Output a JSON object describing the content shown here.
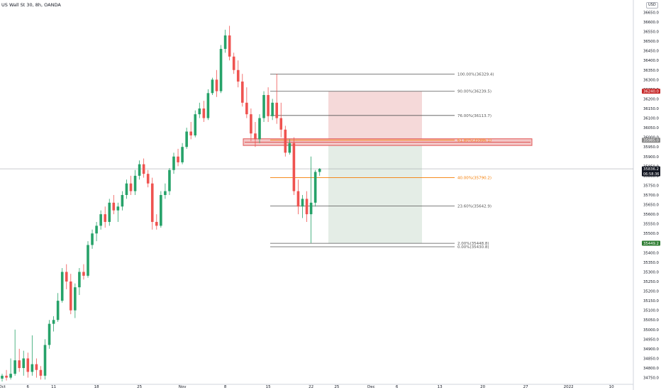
{
  "header": {
    "title": "US Wall St 30, 8h, OANDA",
    "currency": "USD"
  },
  "colors": {
    "up": "#26a269",
    "down": "#ef5350",
    "fib_line": "#555555",
    "fib_orange": "#f57c00",
    "stop_zone": "#f5d9d9",
    "target_zone": "#e4ede6",
    "resistance_box": "#f3c6c6",
    "resistance_border": "#e05555",
    "price_badge_red": "#c62828",
    "price_badge_dark": "#131722",
    "price_badge_green": "#2e7d32",
    "grey_badge": "#888888"
  },
  "price_axis": {
    "ticks": [
      "36650.0",
      "36600.0",
      "36550.0",
      "36500.0",
      "36450.0",
      "36400.0",
      "36350.0",
      "36300.0",
      "36250.0",
      "36200.0",
      "36150.0",
      "36100.0",
      "36050.0",
      "36000.0",
      "35950.0",
      "35900.0",
      "35850.0",
      "35800.0",
      "35750.0",
      "35700.0",
      "35650.0",
      "35600.0",
      "35550.0",
      "35500.0",
      "35450.0",
      "35400.0",
      "35350.0",
      "35300.0",
      "35250.0",
      "35200.0",
      "35150.0",
      "35100.0",
      "35050.0",
      "35000.0",
      "34950.0",
      "34900.0",
      "34850.0",
      "34800.0",
      "34750.0"
    ],
    "badges": [
      {
        "label": "36240.0",
        "price": 36240.0,
        "kind": "red"
      },
      {
        "label": "35985.0",
        "price": 35985.0,
        "kind": "grey"
      },
      {
        "label": "35836.2",
        "price": 35836.2,
        "kind": "dark",
        "sub": "06:58:36"
      },
      {
        "label": "35449.2",
        "price": 35449.2,
        "kind": "green"
      }
    ]
  },
  "time_axis": {
    "ticks": [
      {
        "label": "Oct",
        "bar": 0
      },
      {
        "label": "6",
        "bar": 6
      },
      {
        "label": "11",
        "bar": 12
      },
      {
        "label": "18",
        "bar": 22
      },
      {
        "label": "25",
        "bar": 32
      },
      {
        "label": "Nov",
        "bar": 42
      },
      {
        "label": "8",
        "bar": 52
      },
      {
        "label": "15",
        "bar": 62
      },
      {
        "label": "22",
        "bar": 72
      },
      {
        "label": "25",
        "bar": 78
      },
      {
        "label": "Dec",
        "bar": 86
      },
      {
        "label": "6",
        "bar": 92
      },
      {
        "label": "13",
        "bar": 102
      },
      {
        "label": "20",
        "bar": 112
      },
      {
        "label": "27",
        "bar": 122
      },
      {
        "label": "2022",
        "bar": 132
      },
      {
        "label": "10",
        "bar": 142
      }
    ]
  },
  "chart_data": {
    "type": "candlestick",
    "title": "US Wall St 30, 8h, OANDA",
    "ylim": [
      34730,
      36670
    ],
    "candles": [
      {
        "o": 34745,
        "h": 34770,
        "l": 34730,
        "c": 34760
      },
      {
        "o": 34760,
        "h": 34790,
        "l": 34735,
        "c": 34750
      },
      {
        "o": 34750,
        "h": 34850,
        "l": 34740,
        "c": 34770
      },
      {
        "o": 34770,
        "h": 35000,
        "l": 34760,
        "c": 34840
      },
      {
        "o": 34840,
        "h": 34900,
        "l": 34780,
        "c": 34800
      },
      {
        "o": 34800,
        "h": 34890,
        "l": 34760,
        "c": 34850
      },
      {
        "o": 34850,
        "h": 34880,
        "l": 34750,
        "c": 34780
      },
      {
        "o": 34780,
        "h": 34970,
        "l": 34760,
        "c": 34820
      },
      {
        "o": 34820,
        "h": 34850,
        "l": 34750,
        "c": 34790
      },
      {
        "o": 34790,
        "h": 34810,
        "l": 34740,
        "c": 34760
      },
      {
        "o": 34760,
        "h": 34950,
        "l": 34740,
        "c": 34920
      },
      {
        "o": 34920,
        "h": 35050,
        "l": 34900,
        "c": 35030
      },
      {
        "o": 35030,
        "h": 35070,
        "l": 34990,
        "c": 35050
      },
      {
        "o": 35050,
        "h": 35190,
        "l": 35040,
        "c": 35150
      },
      {
        "o": 35150,
        "h": 35320,
        "l": 35140,
        "c": 35300
      },
      {
        "o": 35300,
        "h": 35340,
        "l": 35210,
        "c": 35250
      },
      {
        "o": 35250,
        "h": 35290,
        "l": 35080,
        "c": 35100
      },
      {
        "o": 35100,
        "h": 35240,
        "l": 35060,
        "c": 35220
      },
      {
        "o": 35220,
        "h": 35320,
        "l": 35180,
        "c": 35300
      },
      {
        "o": 35300,
        "h": 35340,
        "l": 35260,
        "c": 35280
      },
      {
        "o": 35280,
        "h": 35460,
        "l": 35270,
        "c": 35440
      },
      {
        "o": 35440,
        "h": 35520,
        "l": 35420,
        "c": 35500
      },
      {
        "o": 35500,
        "h": 35560,
        "l": 35460,
        "c": 35540
      },
      {
        "o": 35540,
        "h": 35620,
        "l": 35520,
        "c": 35600
      },
      {
        "o": 35600,
        "h": 35640,
        "l": 35530,
        "c": 35560
      },
      {
        "o": 35560,
        "h": 35680,
        "l": 35540,
        "c": 35660
      },
      {
        "o": 35660,
        "h": 35700,
        "l": 35600,
        "c": 35620
      },
      {
        "o": 35620,
        "h": 35660,
        "l": 35560,
        "c": 35640
      },
      {
        "o": 35640,
        "h": 35720,
        "l": 35620,
        "c": 35700
      },
      {
        "o": 35700,
        "h": 35780,
        "l": 35680,
        "c": 35760
      },
      {
        "o": 35760,
        "h": 35800,
        "l": 35700,
        "c": 35720
      },
      {
        "o": 35720,
        "h": 35830,
        "l": 35700,
        "c": 35800
      },
      {
        "o": 35800,
        "h": 35880,
        "l": 35780,
        "c": 35860
      },
      {
        "o": 35860,
        "h": 35890,
        "l": 35790,
        "c": 35810
      },
      {
        "o": 35810,
        "h": 35830,
        "l": 35740,
        "c": 35760
      },
      {
        "o": 35760,
        "h": 35790,
        "l": 35520,
        "c": 35560
      },
      {
        "o": 35560,
        "h": 35600,
        "l": 35520,
        "c": 35540
      },
      {
        "o": 35540,
        "h": 35720,
        "l": 35530,
        "c": 35700
      },
      {
        "o": 35700,
        "h": 35760,
        "l": 35680,
        "c": 35720
      },
      {
        "o": 35720,
        "h": 35840,
        "l": 35700,
        "c": 35830
      },
      {
        "o": 35830,
        "h": 35920,
        "l": 35810,
        "c": 35900
      },
      {
        "o": 35900,
        "h": 35940,
        "l": 35850,
        "c": 35870
      },
      {
        "o": 35870,
        "h": 35970,
        "l": 35860,
        "c": 35950
      },
      {
        "o": 35950,
        "h": 36050,
        "l": 35940,
        "c": 36030
      },
      {
        "o": 36030,
        "h": 36080,
        "l": 35990,
        "c": 36010
      },
      {
        "o": 36010,
        "h": 36140,
        "l": 36000,
        "c": 36120
      },
      {
        "o": 36120,
        "h": 36180,
        "l": 36100,
        "c": 36150
      },
      {
        "o": 36150,
        "h": 36190,
        "l": 36080,
        "c": 36100
      },
      {
        "o": 36100,
        "h": 36250,
        "l": 36090,
        "c": 36230
      },
      {
        "o": 36230,
        "h": 36310,
        "l": 36220,
        "c": 36300
      },
      {
        "o": 36300,
        "h": 36350,
        "l": 36210,
        "c": 36240
      },
      {
        "o": 36240,
        "h": 36480,
        "l": 36230,
        "c": 36460
      },
      {
        "o": 36460,
        "h": 36560,
        "l": 36440,
        "c": 36530
      },
      {
        "o": 36530,
        "h": 36580,
        "l": 36400,
        "c": 36420
      },
      {
        "o": 36420,
        "h": 36440,
        "l": 36330,
        "c": 36350
      },
      {
        "o": 36350,
        "h": 36400,
        "l": 36260,
        "c": 36290
      },
      {
        "o": 36290,
        "h": 36330,
        "l": 36160,
        "c": 36180
      },
      {
        "o": 36180,
        "h": 36260,
        "l": 36100,
        "c": 36120
      },
      {
        "o": 36120,
        "h": 36150,
        "l": 35980,
        "c": 36020
      },
      {
        "o": 36020,
        "h": 36080,
        "l": 35950,
        "c": 35990
      },
      {
        "o": 35990,
        "h": 36120,
        "l": 35970,
        "c": 36100
      },
      {
        "o": 36100,
        "h": 36240,
        "l": 36080,
        "c": 36220
      },
      {
        "o": 36220,
        "h": 36260,
        "l": 36080,
        "c": 36110
      },
      {
        "o": 36110,
        "h": 36200,
        "l": 36090,
        "c": 36180
      },
      {
        "o": 36180,
        "h": 36330,
        "l": 36070,
        "c": 36100
      },
      {
        "o": 36100,
        "h": 36180,
        "l": 36000,
        "c": 36040
      },
      {
        "o": 36040,
        "h": 36060,
        "l": 35900,
        "c": 35920
      },
      {
        "o": 35920,
        "h": 35990,
        "l": 35910,
        "c": 35970
      },
      {
        "o": 35970,
        "h": 36000,
        "l": 35700,
        "c": 35720
      },
      {
        "o": 35720,
        "h": 35780,
        "l": 35600,
        "c": 35640
      },
      {
        "o": 35640,
        "h": 35700,
        "l": 35580,
        "c": 35680
      },
      {
        "o": 35680,
        "h": 35720,
        "l": 35560,
        "c": 35600
      },
      {
        "o": 35600,
        "h": 35900,
        "l": 35450,
        "c": 35660
      },
      {
        "o": 35660,
        "h": 35830,
        "l": 35640,
        "c": 35820
      },
      {
        "o": 35820,
        "h": 35840,
        "l": 35800,
        "c": 35836
      }
    ]
  },
  "fibonacci": {
    "levels": [
      {
        "label": "100.00%(36329.4)",
        "price": 36329.4,
        "color": "fib_line"
      },
      {
        "label": "90.00%(36239.5)",
        "price": 36239.5,
        "color": "fib_line"
      },
      {
        "label": "76.00%(36113.7)",
        "price": 36113.7,
        "color": "fib_line"
      },
      {
        "label": "61.80%(35986.1)",
        "price": 35986.1,
        "color": "fib_orange"
      },
      {
        "label": "40.00%(35790.2)",
        "price": 35790.2,
        "color": "fib_orange"
      },
      {
        "label": "23.60%(35642.9)",
        "price": 35642.9,
        "color": "fib_line"
      },
      {
        "label": "2.00%(35448.8)",
        "price": 35448.8,
        "color": "fib_line"
      },
      {
        "label": "0.00%(35430.8)",
        "price": 35430.8,
        "color": "fib_line"
      }
    ]
  },
  "position_tool": {
    "stop_price": 36240.0,
    "entry_price": 35985.0,
    "target_price": 35449.2
  },
  "resistance_zone": {
    "top": 35985,
    "bottom": 35965
  },
  "last_price": 35836.2
}
